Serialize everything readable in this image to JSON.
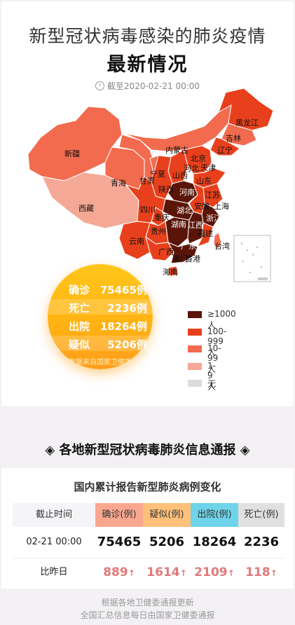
{
  "header": {
    "title_line1": "新型冠状病毒感染的肺炎疫情",
    "title_line2": "最新情况",
    "datetime": "截至2020-02-21 00:00"
  },
  "map": {
    "provinces": [
      {
        "name": "黑龙江",
        "level": "100-999人"
      },
      {
        "name": "吉林",
        "level": "10-99人"
      },
      {
        "name": "辽宁",
        "level": "100-999人"
      },
      {
        "name": "内蒙古",
        "level": "10-99人"
      },
      {
        "name": "新疆",
        "level": "10-99人"
      },
      {
        "name": "西藏",
        "level": "1-9人"
      },
      {
        "name": "青海",
        "level": "10-99人"
      },
      {
        "name": "甘肃",
        "level": "10-99人"
      },
      {
        "name": "宁夏",
        "level": "10-99人"
      },
      {
        "name": "北京",
        "level": "100-999人"
      },
      {
        "name": "天津",
        "level": "100-999人"
      },
      {
        "name": "河北",
        "level": "100-999人"
      },
      {
        "name": "山西",
        "level": "100-999人"
      },
      {
        "name": "陕西",
        "level": "100-999人"
      },
      {
        "name": "山东",
        "level": "100-999人"
      },
      {
        "name": "河南",
        "level": "≥1000人"
      },
      {
        "name": "江苏",
        "level": "100-999人"
      },
      {
        "name": "安徽",
        "level": "100-999人"
      },
      {
        "name": "上海",
        "level": "100-999人"
      },
      {
        "name": "湖北",
        "level": "≥1000人"
      },
      {
        "name": "浙江",
        "level": "≥1000人"
      },
      {
        "name": "四川",
        "level": "100-999人"
      },
      {
        "name": "重庆",
        "level": "100-999人"
      },
      {
        "name": "湖南",
        "level": "≥1000人"
      },
      {
        "name": "江西",
        "level": "≥1000人"
      },
      {
        "name": "福建",
        "level": "100-999人"
      },
      {
        "name": "贵州",
        "level": "100-999人"
      },
      {
        "name": "云南",
        "level": "100-999人"
      },
      {
        "name": "广西",
        "level": "100-999人"
      },
      {
        "name": "广东",
        "level": "≥1000人"
      },
      {
        "name": "台湾",
        "level": "10-99人"
      },
      {
        "name": "澳门",
        "level": "10-99人"
      },
      {
        "name": "香港",
        "level": "10-99人"
      },
      {
        "name": "海南",
        "level": "100-999人"
      }
    ]
  },
  "summary": {
    "items": [
      {
        "label": "确诊",
        "value": "75465例"
      },
      {
        "label": "死亡",
        "value": "2236例"
      },
      {
        "label": "出院",
        "value": "18264例"
      },
      {
        "label": "疑似",
        "value": "5206例"
      }
    ],
    "source": "数据来自国家卫健委"
  },
  "legend": {
    "items": [
      {
        "label": "≥1000人",
        "color": "#5a1508"
      },
      {
        "label": "100-999人",
        "color": "#e8401c"
      },
      {
        "label": "10-99人",
        "color": "#f26b4e"
      },
      {
        "label": "1-9人",
        "color": "#f5a895"
      },
      {
        "label": "无",
        "color": "#dcdcdc"
      }
    ]
  },
  "section": {
    "title": "◈ 各地新型冠状病毒肺炎信息通报 ◈"
  },
  "table": {
    "title": "国内累计报告新型肺炎病例变化",
    "headers": [
      "截止时间",
      "确诊(例)",
      "疑似(例)",
      "出院(例)",
      "死亡(例)"
    ],
    "header_colors": [
      "#f5f5f8",
      "#f9a78f",
      "#ffc07a",
      "#6fd4ea",
      "#e0e0e0"
    ],
    "row_current": {
      "label": "02-21 00:00",
      "values": [
        "75465",
        "5206",
        "18264",
        "2236"
      ]
    },
    "row_change": {
      "label": "比昨日",
      "values": [
        "889",
        "1614",
        "2109",
        "118"
      ],
      "arrow": "↑"
    }
  },
  "footer": {
    "line1": "根据各地卫健委通报更新",
    "line2": "全国汇总信息每日由国家卫健委通报"
  }
}
